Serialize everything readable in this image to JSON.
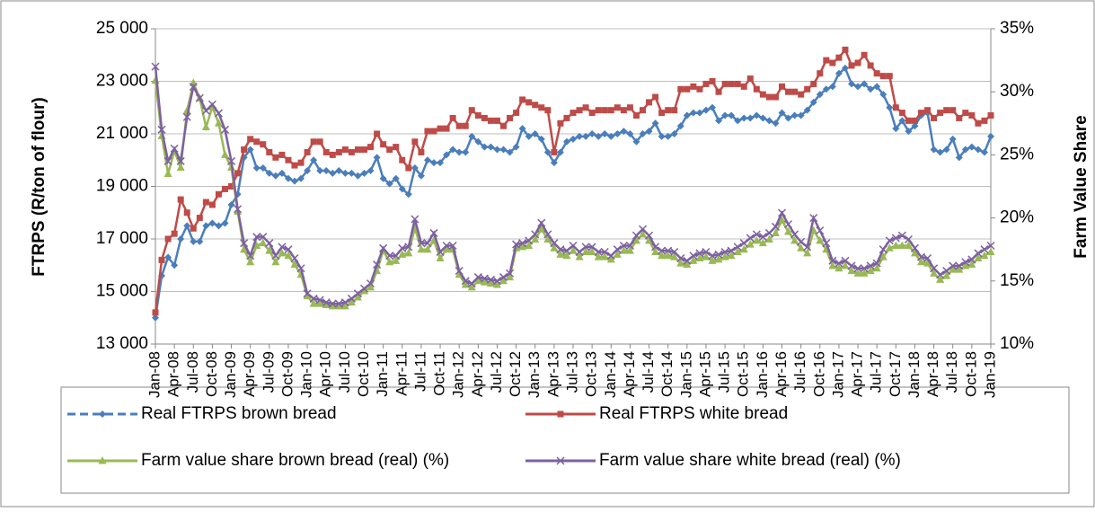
{
  "chart_data": {
    "type": "line",
    "y_label": "FTRPS (R/ton of flour)",
    "y2_label": "Farm Value Share",
    "categories": [
      "Jan-08",
      null,
      null,
      "Apr-08",
      null,
      null,
      "Jul-08",
      null,
      null,
      "Oct-08",
      null,
      null,
      "Jan-09",
      null,
      null,
      "Apr-09",
      null,
      null,
      "Jul-09",
      null,
      null,
      "Oct-09",
      null,
      null,
      "Jan-10",
      null,
      null,
      "Apr-10",
      null,
      null,
      "Jul-10",
      null,
      null,
      "Oct-10",
      null,
      null,
      "Jan-11",
      null,
      null,
      "Apr-11",
      null,
      null,
      "Jul-11",
      null,
      null,
      "Oct-11",
      null,
      null,
      "Jan-12",
      null,
      null,
      "Apr-12",
      null,
      null,
      "Jul-12",
      null,
      null,
      "Oct-12",
      null,
      null,
      "Jan-13",
      null,
      null,
      "Apr-13",
      null,
      null,
      "Jul-13",
      null,
      null,
      "Oct-13",
      null,
      null,
      "Jan-14",
      null,
      null,
      "Apr-14",
      null,
      null,
      "Jul-14",
      null,
      null,
      "Oct-14",
      null,
      null,
      "Jan-15",
      null,
      null,
      "Apr-15",
      null,
      null,
      "Jul-15",
      null,
      null,
      "Oct-15",
      null,
      null,
      "Jan-16",
      null,
      null,
      "Apr-16",
      null,
      null,
      "Jul-16",
      null,
      null,
      "Oct-16",
      null,
      null,
      "Jan-17",
      null,
      null,
      "Apr-17",
      null,
      null,
      "Jul-17",
      null,
      null,
      "Oct-17",
      null,
      null,
      "Jan-18",
      null,
      null,
      "Apr-18",
      null,
      null,
      "Jul-18",
      null,
      null,
      "Oct-18",
      null,
      null,
      "Jan-19"
    ],
    "ylim": [
      13000,
      25000
    ],
    "yticks": [
      {
        "value": 13000,
        "label": "13 000"
      },
      {
        "value": 15000,
        "label": "15 000"
      },
      {
        "value": 17000,
        "label": "17 000"
      },
      {
        "value": 19000,
        "label": "19 000"
      },
      {
        "value": 21000,
        "label": "21 000"
      },
      {
        "value": 23000,
        "label": "23 000"
      },
      {
        "value": 25000,
        "label": "25 000"
      }
    ],
    "y2lim": [
      10,
      35
    ],
    "y2ticks": [
      {
        "value": 10,
        "label": "10%"
      },
      {
        "value": 15,
        "label": "15%"
      },
      {
        "value": 20,
        "label": "20%"
      },
      {
        "value": 25,
        "label": "25%"
      },
      {
        "value": 30,
        "label": "30%"
      },
      {
        "value": 35,
        "label": "35%"
      }
    ],
    "grid": true,
    "legend": "bottom",
    "series": [
      {
        "name": "Real FTRPS brown bread",
        "color": "#4a7ebb",
        "marker": "diamond",
        "values": [
          14000,
          15600,
          16300,
          16000,
          17000,
          17500,
          16900,
          16900,
          17500,
          17600,
          17500,
          17600,
          18300,
          18700,
          20100,
          20400,
          19700,
          19700,
          19500,
          19400,
          19500,
          19300,
          19200,
          19300,
          19600,
          20000,
          19600,
          19600,
          19500,
          19600,
          19500,
          19500,
          19400,
          19500,
          19600,
          20100,
          19300,
          19100,
          19300,
          18900,
          18700,
          19700,
          19400,
          20000,
          19900,
          19900,
          20200,
          20400,
          20300,
          20300,
          20900,
          20700,
          20500,
          20500,
          20400,
          20400,
          20300,
          20500,
          21200,
          20900,
          21000,
          20800,
          20300,
          19900,
          20300,
          20700,
          20800,
          20900,
          20900,
          21000,
          20900,
          21000,
          20900,
          21000,
          21100,
          21000,
          20700,
          21000,
          21100,
          21400,
          20900,
          20900,
          21000,
          21300,
          21700,
          21800,
          21800,
          21900,
          22000,
          21500,
          21700,
          21700,
          21500,
          21600,
          21600,
          21700,
          21600,
          21500,
          21400,
          21800,
          21600,
          21700,
          21700,
          21900,
          22200,
          22500,
          22700,
          22800,
          23300,
          23500,
          22900,
          22800,
          22900,
          22700,
          22800,
          22500,
          22000,
          21200,
          21500,
          21100,
          21300,
          21700,
          21800,
          20400,
          20300,
          20400,
          20800,
          20100,
          20400,
          20500,
          20400,
          20300,
          20900
        ]
      },
      {
        "name": "Real FTRPS white bread",
        "color": "#be4b48",
        "marker": "square",
        "values": [
          14200,
          16200,
          17000,
          17200,
          18500,
          18000,
          17400,
          17800,
          18400,
          18300,
          18700,
          18900,
          19000,
          19500,
          20400,
          20800,
          20700,
          20600,
          20300,
          20100,
          20200,
          20000,
          19800,
          19900,
          20300,
          20700,
          20700,
          20300,
          20200,
          20300,
          20400,
          20300,
          20400,
          20400,
          20500,
          21000,
          20600,
          20400,
          20500,
          20000,
          19700,
          20700,
          20300,
          21100,
          21100,
          21200,
          21200,
          21600,
          21300,
          21300,
          21900,
          21700,
          21600,
          21500,
          21500,
          21300,
          21600,
          21800,
          22300,
          22200,
          22100,
          22000,
          21900,
          20300,
          21400,
          21600,
          21800,
          21900,
          22000,
          21800,
          21900,
          21900,
          21900,
          22000,
          21900,
          22000,
          21700,
          21900,
          22200,
          22400,
          21800,
          21900,
          21900,
          22700,
          22700,
          22800,
          22700,
          22900,
          23000,
          22600,
          22900,
          22900,
          22900,
          22800,
          23100,
          22700,
          22500,
          22400,
          22400,
          22800,
          22600,
          22600,
          22500,
          22700,
          22900,
          23300,
          23800,
          23700,
          23900,
          24200,
          23600,
          23700,
          24000,
          23600,
          23300,
          23200,
          23200,
          22000,
          21800,
          21500,
          21500,
          21800,
          21900,
          21600,
          21800,
          21900,
          21900,
          21600,
          21800,
          21700,
          21400,
          21500,
          21700
        ]
      },
      {
        "name": "Farm value share brown bread (real) (%)",
        "color": "#98b954",
        "marker": "triangle",
        "axis": "y2",
        "values": [
          30.9,
          26.5,
          23.5,
          25.3,
          24,
          28.5,
          30.7,
          29.5,
          27.2,
          28.8,
          27.5,
          25,
          24,
          20.5,
          17.5,
          16.5,
          17.8,
          18,
          17.4,
          16.5,
          17.2,
          17,
          16.3,
          15.5,
          13.8,
          13.2,
          13.2,
          13.1,
          13,
          13,
          13,
          13.3,
          13.7,
          14.2,
          14.5,
          15.8,
          17.4,
          16.5,
          16.6,
          17.1,
          17.2,
          19.2,
          17.5,
          17.5,
          18.2,
          16.8,
          17.5,
          17.5,
          15.5,
          14.7,
          14.5,
          15,
          14.9,
          14.8,
          14.7,
          15,
          15.3,
          17.6,
          17.7,
          17.8,
          18.3,
          19.1,
          18.3,
          17.6,
          17.1,
          17,
          17.4,
          16.9,
          17.3,
          17.3,
          16.9,
          16.9,
          16.7,
          17.1,
          17.4,
          17.4,
          18.2,
          18.7,
          18.2,
          17.3,
          17,
          17,
          16.9,
          16.4,
          16.3,
          16.6,
          16.8,
          16.9,
          16.6,
          16.7,
          16.9,
          17,
          17.3,
          17.5,
          17.9,
          18.2,
          18,
          18.3,
          18.8,
          19.8,
          18.9,
          18.2,
          17.6,
          17.2,
          19,
          18.2,
          17.5,
          16.2,
          16,
          16.2,
          15.8,
          15.6,
          15.6,
          15.8,
          16,
          16.9,
          17.6,
          17.8,
          17.8,
          17.8,
          17.2,
          16.5,
          16.4,
          15.6,
          15.1,
          15.4,
          15.9,
          15.9,
          16.2,
          16.3,
          16.8,
          17,
          17.3
        ]
      },
      {
        "name": "Farm value share white bread (real) (%)",
        "color": "#7d60a0",
        "marker": "x",
        "axis": "y2",
        "values": [
          32,
          27,
          24.5,
          25.5,
          24.5,
          28,
          30.4,
          29.5,
          28.5,
          29,
          28.3,
          27,
          24.5,
          20.7,
          18,
          17,
          18.5,
          18.5,
          18,
          17,
          17.7,
          17.5,
          16.8,
          16,
          14,
          13.6,
          13.5,
          13.3,
          13.2,
          13.2,
          13.3,
          13.6,
          14,
          14.4,
          14.8,
          16.3,
          17.6,
          17,
          17,
          17.6,
          17.7,
          19.9,
          18,
          18,
          18.8,
          17.3,
          17.8,
          17.8,
          15.8,
          15,
          14.8,
          15.3,
          15.2,
          15.1,
          15,
          15.3,
          15.6,
          17.9,
          18,
          18.2,
          18.7,
          19.6,
          18.7,
          18,
          17.5,
          17.4,
          17.8,
          17.3,
          17.7,
          17.7,
          17.3,
          17.3,
          17,
          17.5,
          17.8,
          17.8,
          18.6,
          19.1,
          18.6,
          17.7,
          17.4,
          17.4,
          17.3,
          16.8,
          16.6,
          17,
          17.2,
          17.3,
          17,
          17.1,
          17.3,
          17.4,
          17.7,
          18,
          18.4,
          18.7,
          18.5,
          18.8,
          19.3,
          20.4,
          19.5,
          18.7,
          18.1,
          17.7,
          20,
          19,
          18,
          16.6,
          16.4,
          16.6,
          16.2,
          16,
          16,
          16.2,
          16.4,
          17.5,
          18.2,
          18.4,
          18.6,
          18.3,
          17.6,
          16.9,
          16.8,
          16,
          15.5,
          15.8,
          16.2,
          16.2,
          16.5,
          16.7,
          17.2,
          17.5,
          17.8
        ]
      }
    ]
  }
}
